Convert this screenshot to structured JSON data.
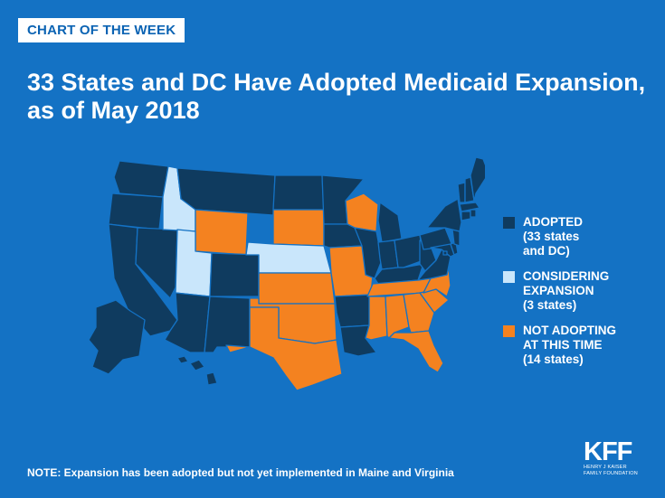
{
  "header": {
    "badge": "CHART OF THE WEEK",
    "title_line1": "33 States and DC Have Adopted Medicaid Expansion,",
    "title_line2": "as of May 2018"
  },
  "colors": {
    "background": "#1472c4",
    "adopted": "#0f3b5f",
    "considering": "#c9e6fb",
    "not_adopting": "#f48220",
    "border": "#1472c4"
  },
  "legend": [
    {
      "key": "adopted",
      "lines": [
        "ADOPTED",
        "(33 states",
        "and DC)"
      ]
    },
    {
      "key": "considering",
      "lines": [
        "CONSIDERING",
        "EXPANSION",
        "(3 states)"
      ]
    },
    {
      "key": "not_adopting",
      "lines": [
        "NOT ADOPTING",
        "AT THIS TIME",
        "(14 states)"
      ]
    }
  ],
  "map_data": {
    "adopted": [
      "WA",
      "OR",
      "CA",
      "NV",
      "AZ",
      "NM",
      "CO",
      "MT",
      "ND",
      "MN",
      "IA",
      "IL",
      "IN",
      "OH",
      "MI",
      "KY",
      "WV",
      "PA",
      "NY",
      "VT",
      "NH",
      "ME",
      "MA",
      "RI",
      "CT",
      "NJ",
      "DE",
      "MD",
      "DC",
      "VA",
      "AR",
      "LA",
      "AK",
      "HI"
    ],
    "considering": [
      "ID",
      "UT",
      "NE"
    ],
    "not_adopting": [
      "WY",
      "SD",
      "KS",
      "OK",
      "TX",
      "MO",
      "WI",
      "TN",
      "MS",
      "AL",
      "GA",
      "FL",
      "SC",
      "NC"
    ]
  },
  "footer": {
    "note": "NOTE:  Expansion has been adopted but not yet implemented in Maine and Virginia",
    "logo_mark": "KFF",
    "logo_line1": "HENRY J KAISER",
    "logo_line2": "FAMILY FOUNDATION"
  }
}
